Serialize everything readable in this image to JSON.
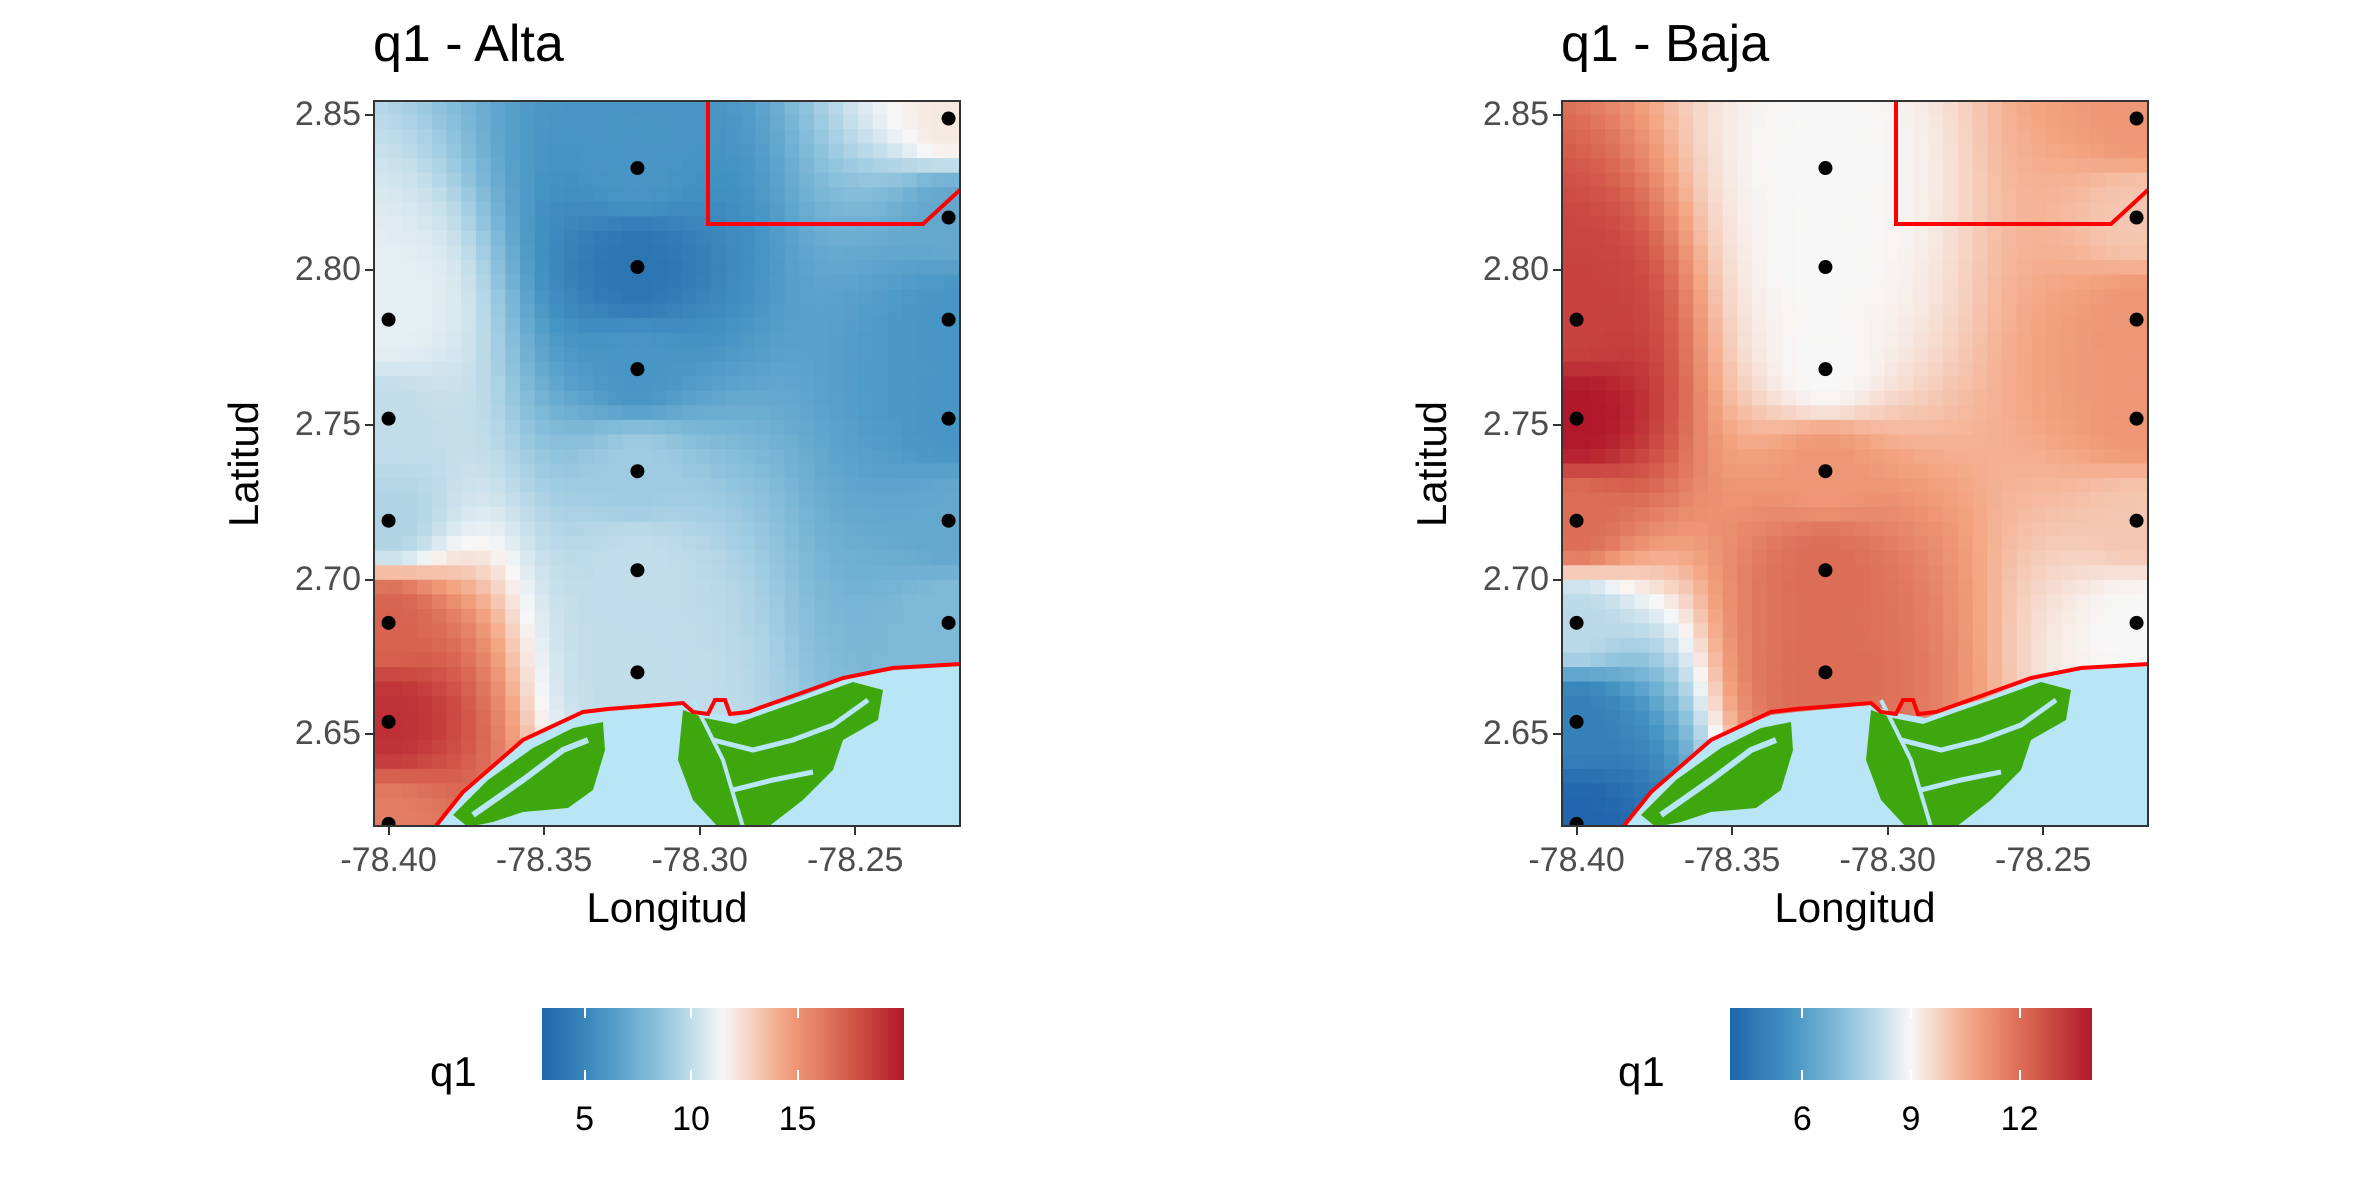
{
  "colors": {
    "low": "#2166ac",
    "mid": "#f7f7f7",
    "high": "#b2182b",
    "land": "#3fa70e",
    "water": "#b8e6f6",
    "boundary": "#ff0000",
    "points": "#000000"
  },
  "panels": [
    {
      "title": "q1 - Alta",
      "xlabel": "Longitud",
      "ylabel": "Latitud",
      "xticks": [
        "-78.40",
        "-78.35",
        "-78.30",
        "-78.25"
      ],
      "yticks": [
        "2.85",
        "2.80",
        "2.75",
        "2.70",
        "2.65"
      ],
      "legend": {
        "title": "q1",
        "labels": [
          "5",
          "10",
          "15"
        ],
        "range": [
          3,
          20
        ],
        "label_values": [
          5,
          10,
          15
        ]
      }
    },
    {
      "title": "q1 - Baja",
      "xlabel": "Longitud",
      "ylabel": "Latitud",
      "xticks": [
        "-78.40",
        "-78.35",
        "-78.30",
        "-78.25"
      ],
      "yticks": [
        "2.85",
        "2.80",
        "2.75",
        "2.70",
        "2.65"
      ],
      "legend": {
        "title": "q1",
        "labels": [
          "6",
          "9",
          "12"
        ],
        "range": [
          4,
          14
        ],
        "label_values": [
          6,
          9,
          12
        ]
      }
    }
  ],
  "map_data": {
    "xlim": [
      -78.405,
      -78.216
    ],
    "ylim": [
      2.62,
      2.855
    ],
    "sample_points": [
      [
        -78.4,
        2.784
      ],
      [
        -78.4,
        2.752
      ],
      [
        -78.4,
        2.719
      ],
      [
        -78.4,
        2.686
      ],
      [
        -78.4,
        2.654
      ],
      [
        -78.4,
        2.621
      ],
      [
        -78.32,
        2.833
      ],
      [
        -78.32,
        2.801
      ],
      [
        -78.32,
        2.768
      ],
      [
        -78.32,
        2.735
      ],
      [
        -78.32,
        2.703
      ],
      [
        -78.32,
        2.67
      ],
      [
        -78.22,
        2.849
      ],
      [
        -78.22,
        2.817
      ],
      [
        -78.22,
        2.784
      ],
      [
        -78.22,
        2.752
      ],
      [
        -78.22,
        2.719
      ],
      [
        -78.22,
        2.686
      ]
    ],
    "alta_values": [
      11,
      10,
      9.5,
      17,
      19,
      16,
      6,
      4,
      6,
      9,
      10,
      10,
      12,
      7,
      6,
      6,
      7,
      8
    ],
    "baja_values": [
      13,
      14,
      12,
      8,
      5,
      4,
      9,
      9,
      9,
      11,
      12,
      12,
      11,
      10,
      11,
      11,
      10,
      9
    ]
  }
}
